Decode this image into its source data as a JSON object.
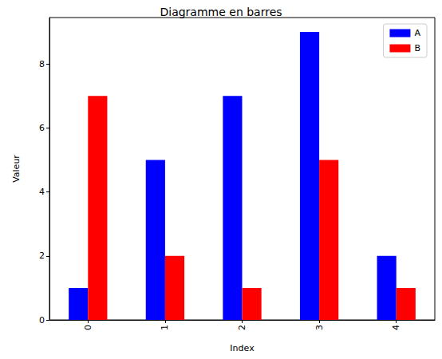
{
  "chart_data": {
    "type": "bar",
    "title": "Diagramme en barres",
    "xlabel": "Index",
    "ylabel": "Valeur",
    "categories": [
      "0",
      "1",
      "2",
      "3",
      "4"
    ],
    "series": [
      {
        "name": "A",
        "color": "#0000ff",
        "values": [
          1,
          5,
          7,
          9,
          2
        ]
      },
      {
        "name": "B",
        "color": "#ff0000",
        "values": [
          7,
          2,
          1,
          5,
          1
        ]
      }
    ],
    "ylim": [
      0,
      9.45
    ],
    "yticks": [
      0,
      2,
      4,
      6,
      8
    ],
    "grid": false,
    "legend": "upper right"
  }
}
